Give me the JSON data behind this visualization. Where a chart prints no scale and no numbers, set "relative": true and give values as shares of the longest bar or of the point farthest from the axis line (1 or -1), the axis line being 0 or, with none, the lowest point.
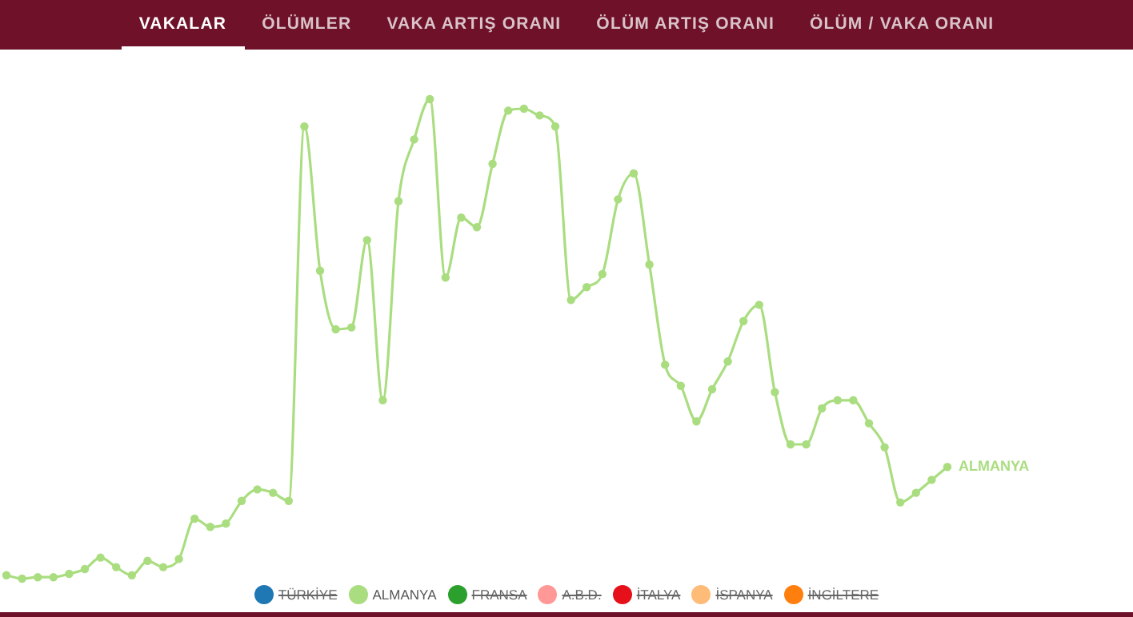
{
  "chart_data": {
    "type": "line",
    "relative": true,
    "legend": "bottom",
    "marker": "circle",
    "line_style": "solid",
    "grid": false,
    "tick_labels": false,
    "annotations": [
      "VAKALAR",
      "ÖLÜMLER",
      "VAKA ARTIŞ ORANI",
      "ÖLÜM ARTIŞ ORANI",
      "ÖLÜM / VAKA ORANI"
    ],
    "categories": [
      null,
      null,
      null,
      null,
      null,
      null,
      null,
      null,
      null,
      null,
      null,
      null,
      null,
      null,
      null,
      null,
      null,
      null,
      null,
      null,
      null,
      null,
      null,
      null,
      null,
      null,
      null,
      null,
      null,
      null,
      null,
      null,
      null,
      null,
      null,
      null,
      null,
      null,
      null,
      null,
      null,
      null,
      null,
      null,
      null,
      null,
      null,
      null,
      null,
      null,
      null,
      null,
      null,
      null,
      null,
      null,
      null,
      null,
      null,
      null,
      null
    ],
    "series": [
      {
        "name": "TÜRKİYE",
        "color": "#1f77b4",
        "values": [
          null,
          null,
          null,
          null,
          null,
          null,
          null,
          null,
          null,
          null,
          null,
          null,
          null,
          null,
          null,
          null,
          null,
          null,
          null,
          null,
          null,
          null,
          null,
          null,
          null,
          null,
          null,
          null,
          null,
          null,
          null,
          null,
          null,
          null,
          null,
          null,
          null,
          null,
          null,
          null,
          null,
          null,
          null,
          null,
          null,
          null,
          null,
          null,
          null,
          null,
          null,
          null,
          null,
          null,
          null,
          null,
          null,
          null,
          null,
          null,
          null
        ]
      },
      {
        "name": "ALMANYA",
        "color": "#aadd80",
        "values": [
          0.007,
          0,
          0.003,
          0.003,
          0.01,
          0.02,
          0.044,
          0.024,
          0.007,
          0.037,
          0.024,
          0.041,
          0.125,
          0.108,
          0.115,
          0.162,
          0.186,
          0.179,
          0.162,
          0.943,
          0.642,
          0.52,
          0.524,
          0.706,
          0.372,
          0.787,
          0.916,
          1,
          0.628,
          0.753,
          0.733,
          0.865,
          0.976,
          0.98,
          0.966,
          0.943,
          0.581,
          0.608,
          0.635,
          0.791,
          0.845,
          0.655,
          0.446,
          0.402,
          0.328,
          0.395,
          0.453,
          0.537,
          0.571,
          0.389,
          0.28,
          0.28,
          0.355,
          0.372,
          0.372,
          0.324,
          0.274,
          0.159,
          0.179,
          0.206,
          0.233
        ]
      },
      {
        "name": "FRANSA",
        "color": "#2ca02c",
        "values": [
          null,
          null,
          null,
          null,
          null,
          null,
          null,
          null,
          null,
          null,
          null,
          null,
          null,
          null,
          null,
          null,
          null,
          null,
          null,
          null,
          null,
          null,
          null,
          null,
          null,
          null,
          null,
          null,
          null,
          null,
          null,
          null,
          null,
          null,
          null,
          null,
          null,
          null,
          null,
          null,
          null,
          null,
          null,
          null,
          null,
          null,
          null,
          null,
          null,
          null,
          null,
          null,
          null,
          null,
          null,
          null,
          null,
          null,
          null,
          null,
          null
        ]
      },
      {
        "name": "A.B.D.",
        "color": "#ff9896",
        "values": [
          null,
          null,
          null,
          null,
          null,
          null,
          null,
          null,
          null,
          null,
          null,
          null,
          null,
          null,
          null,
          null,
          null,
          null,
          null,
          null,
          null,
          null,
          null,
          null,
          null,
          null,
          null,
          null,
          null,
          null,
          null,
          null,
          null,
          null,
          null,
          null,
          null,
          null,
          null,
          null,
          null,
          null,
          null,
          null,
          null,
          null,
          null,
          null,
          null,
          null,
          null,
          null,
          null,
          null,
          null,
          null,
          null,
          null,
          null,
          null,
          null
        ]
      },
      {
        "name": "İTALYA",
        "color": "#e6101a",
        "values": [
          null,
          null,
          null,
          null,
          null,
          null,
          null,
          null,
          null,
          null,
          null,
          null,
          null,
          null,
          null,
          null,
          null,
          null,
          null,
          null,
          null,
          null,
          null,
          null,
          null,
          null,
          null,
          null,
          null,
          null,
          null,
          null,
          null,
          null,
          null,
          null,
          null,
          null,
          null,
          null,
          null,
          null,
          null,
          null,
          null,
          null,
          null,
          null,
          null,
          null,
          null,
          null,
          null,
          null,
          null,
          null,
          null,
          null,
          null,
          null,
          null
        ]
      },
      {
        "name": "İSPANYA",
        "color": "#ffbb78",
        "values": [
          null,
          null,
          null,
          null,
          null,
          null,
          null,
          null,
          null,
          null,
          null,
          null,
          null,
          null,
          null,
          null,
          null,
          null,
          null,
          null,
          null,
          null,
          null,
          null,
          null,
          null,
          null,
          null,
          null,
          null,
          null,
          null,
          null,
          null,
          null,
          null,
          null,
          null,
          null,
          null,
          null,
          null,
          null,
          null,
          null,
          null,
          null,
          null,
          null,
          null,
          null,
          null,
          null,
          null,
          null,
          null,
          null,
          null,
          null,
          null,
          null
        ]
      },
      {
        "name": "İNGİLTERE",
        "color": "#ff7f0e",
        "values": [
          null,
          null,
          null,
          null,
          null,
          null,
          null,
          null,
          null,
          null,
          null,
          null,
          null,
          null,
          null,
          null,
          null,
          null,
          null,
          null,
          null,
          null,
          null,
          null,
          null,
          null,
          null,
          null,
          null,
          null,
          null,
          null,
          null,
          null,
          null,
          null,
          null,
          null,
          null,
          null,
          null,
          null,
          null,
          null,
          null,
          null,
          null,
          null,
          null,
          null,
          null,
          null,
          null,
          null,
          null,
          null,
          null,
          null,
          null,
          null,
          null
        ]
      }
    ]
  }
}
